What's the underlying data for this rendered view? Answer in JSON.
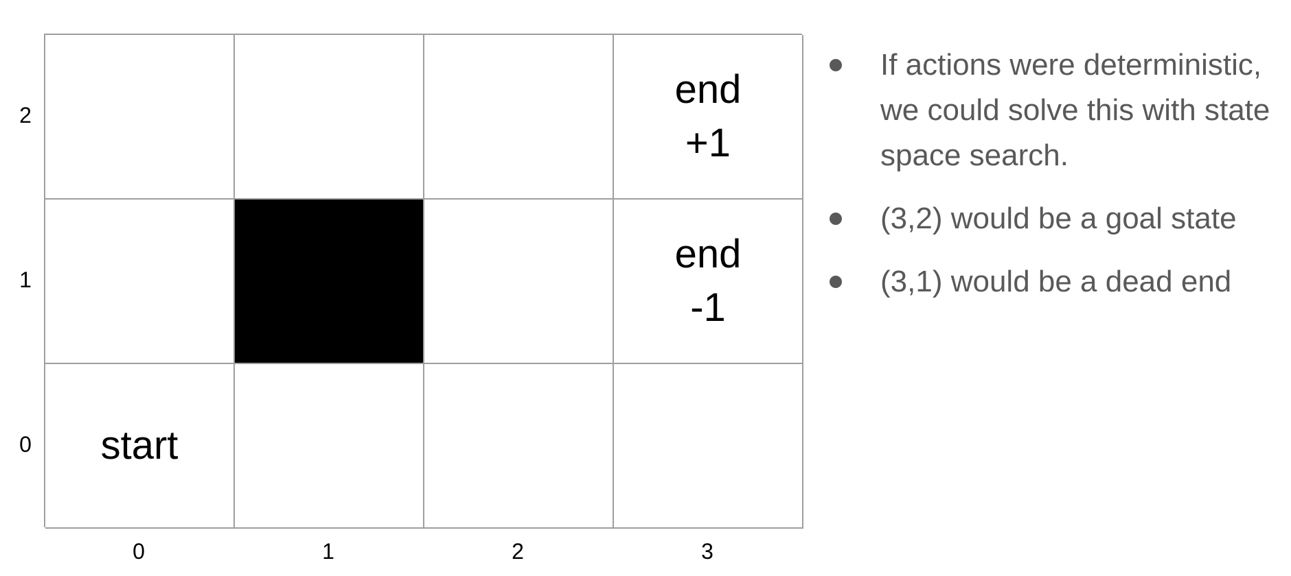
{
  "grid": {
    "columns": 4,
    "rows": 3,
    "cells": [
      {
        "col": 0,
        "row": 2,
        "label": "",
        "wall": false
      },
      {
        "col": 1,
        "row": 2,
        "label": "",
        "wall": false
      },
      {
        "col": 2,
        "row": 2,
        "label": "",
        "wall": false
      },
      {
        "col": 3,
        "row": 2,
        "label": "end\n+1",
        "wall": false
      },
      {
        "col": 0,
        "row": 1,
        "label": "",
        "wall": false
      },
      {
        "col": 1,
        "row": 1,
        "label": "",
        "wall": true
      },
      {
        "col": 2,
        "row": 1,
        "label": "",
        "wall": false
      },
      {
        "col": 3,
        "row": 1,
        "label": "end\n-1",
        "wall": false
      },
      {
        "col": 0,
        "row": 0,
        "label": "start",
        "wall": false
      },
      {
        "col": 1,
        "row": 0,
        "label": "",
        "wall": false
      },
      {
        "col": 2,
        "row": 0,
        "label": "",
        "wall": false
      },
      {
        "col": 3,
        "row": 0,
        "label": "",
        "wall": false
      }
    ],
    "wall_color": "#000000",
    "line_color": "#9e9e9e"
  },
  "axes": {
    "x_labels": [
      "0",
      "1",
      "2",
      "3"
    ],
    "y_labels": [
      "2",
      "1",
      "0"
    ]
  },
  "bullets": [
    "If actions were deterministic, we could solve this with state space search.",
    "(3,2) would be a goal state",
    "(3,1) would be a dead end"
  ],
  "colors": {
    "bullet_text": "#595959"
  }
}
